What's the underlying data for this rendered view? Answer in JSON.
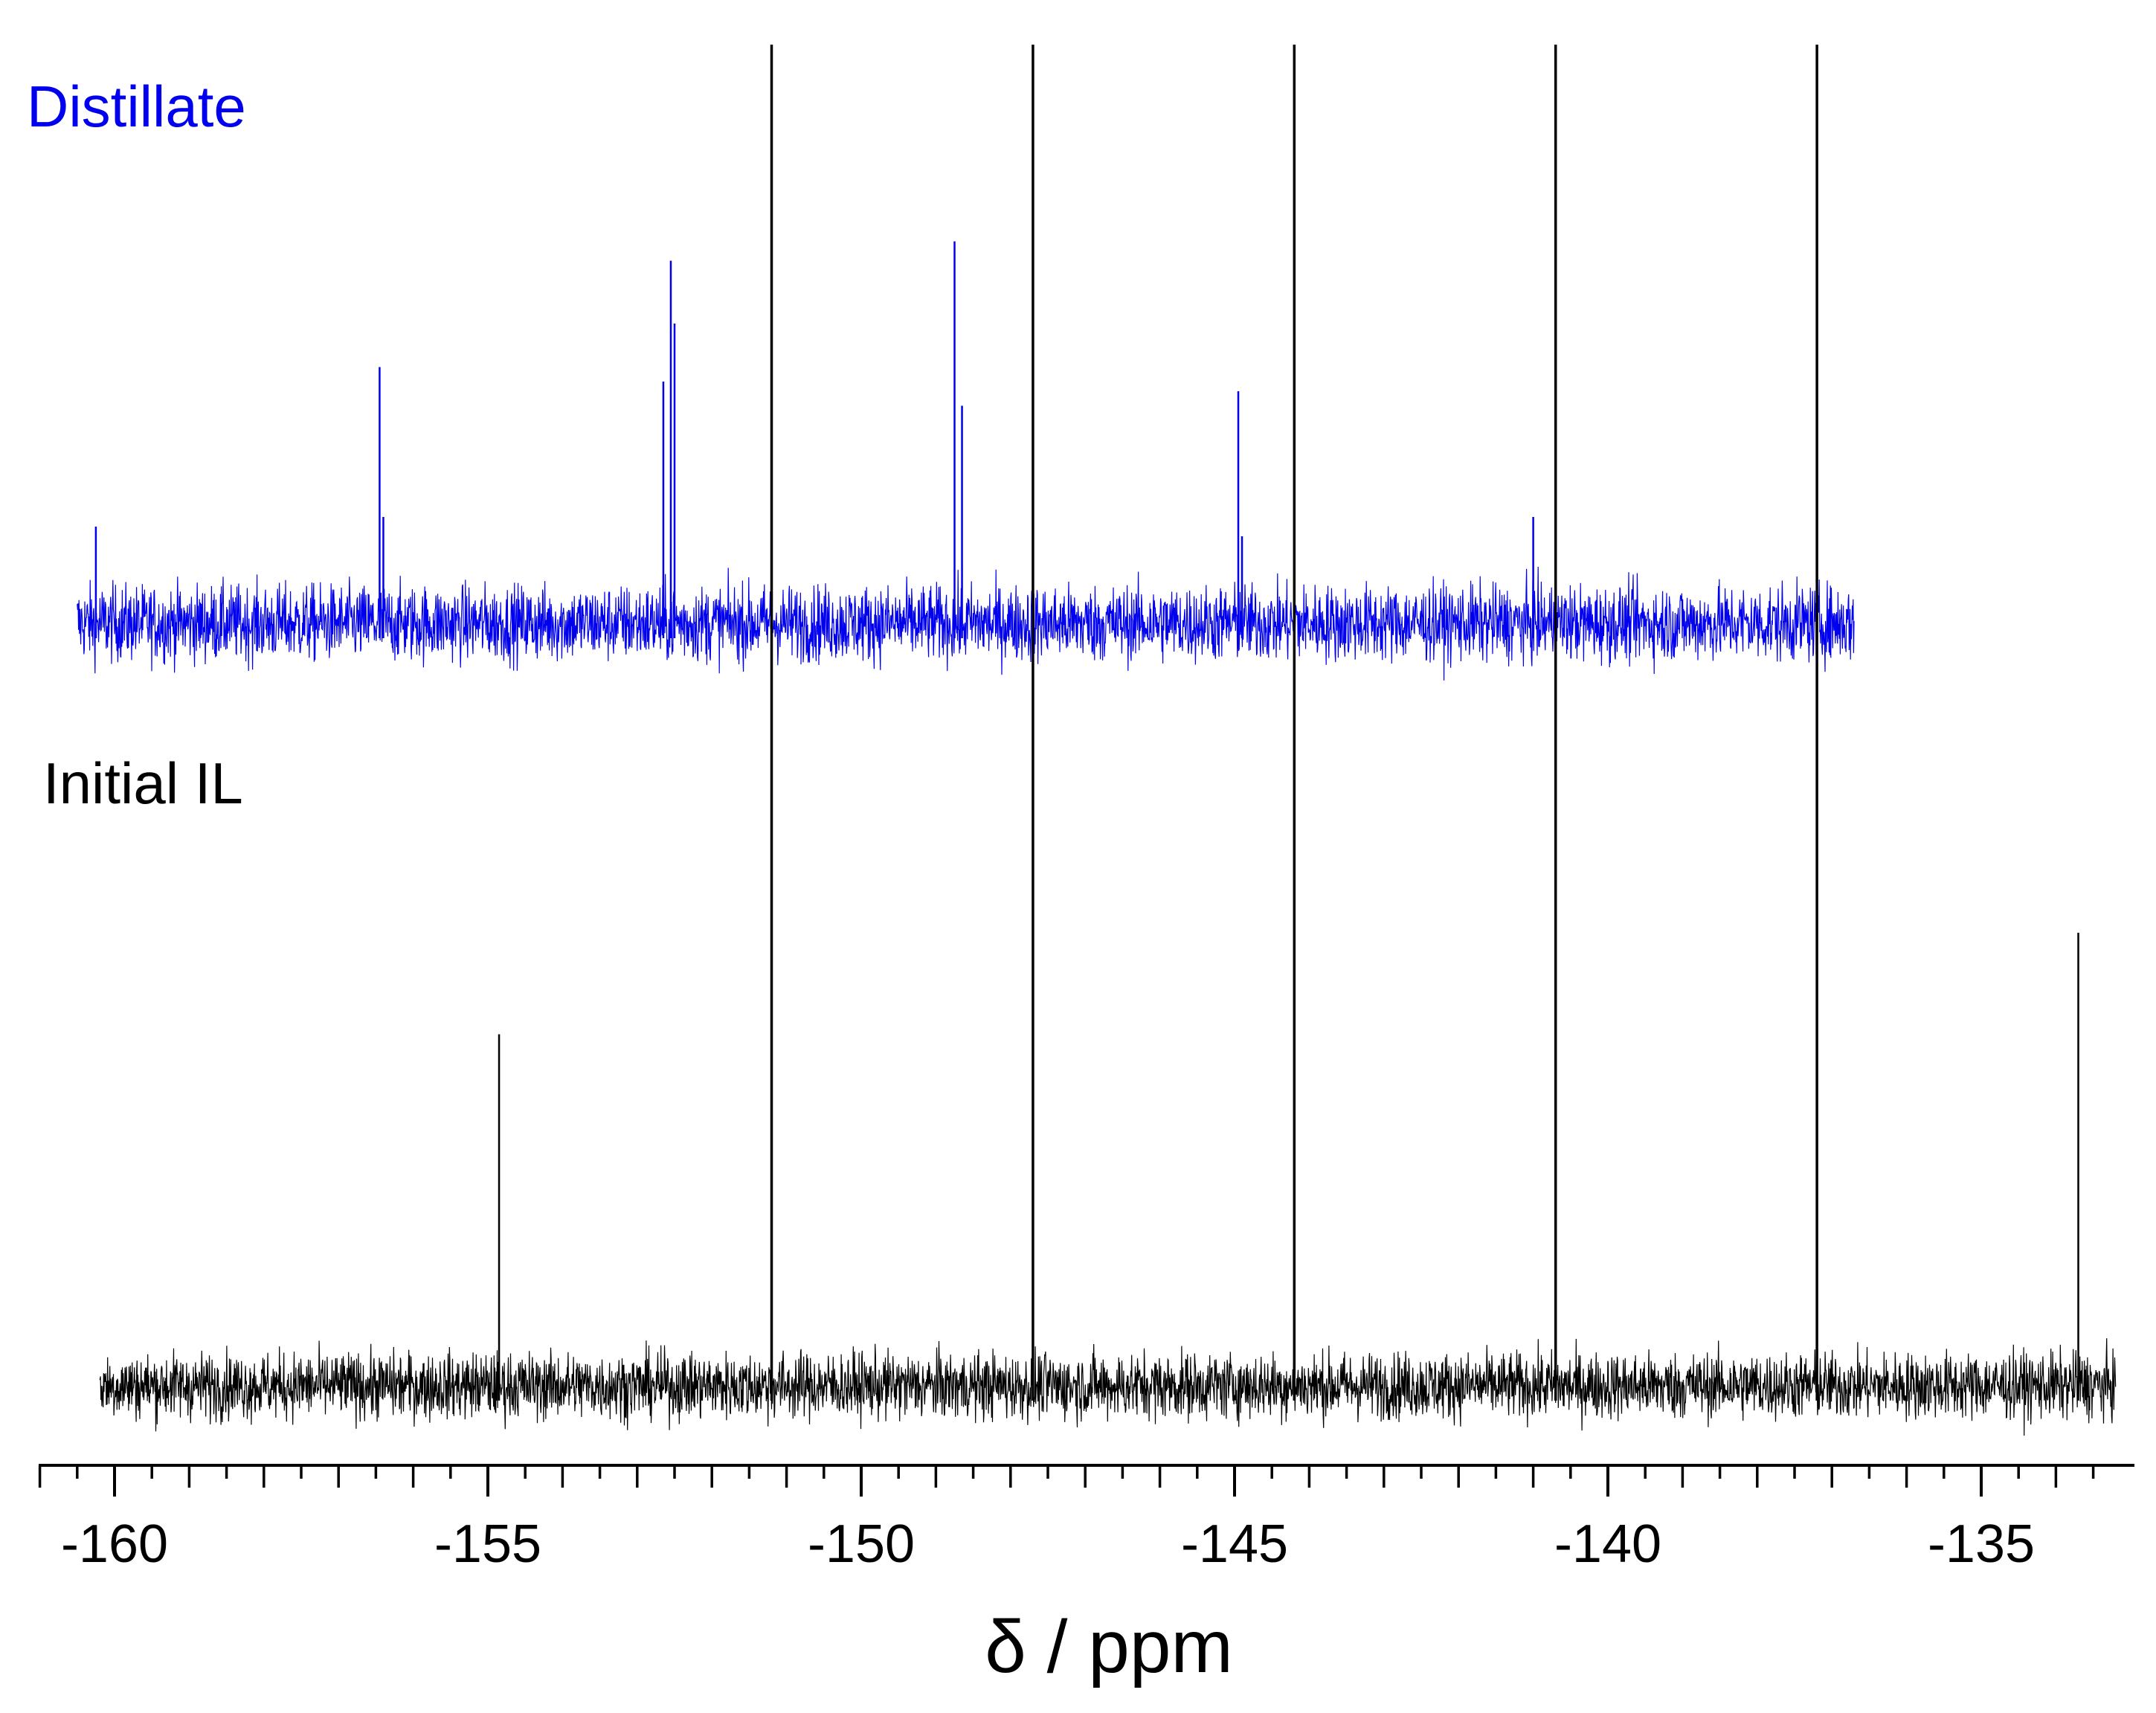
{
  "chart_data": {
    "type": "line",
    "xlabel": "δ / ppm",
    "xlim": [
      -161,
      -133.2
    ],
    "x_ticks": [
      -160,
      -155,
      -150,
      -145,
      -140,
      -135
    ],
    "x_tick_labels": [
      "-160",
      "-155",
      "-150",
      "-145",
      "-140",
      "-135"
    ],
    "minor_tick_step": 0.5,
    "series": [
      {
        "name": "Distillate",
        "color": "#0000ee",
        "x_range": [
          -160.5,
          -136.7
        ],
        "peaks": [
          {
            "x": -160.25,
            "height": 0.2
          },
          {
            "x": -156.45,
            "height": 0.53
          },
          {
            "x": -156.4,
            "height": 0.22
          },
          {
            "x": -152.65,
            "height": 0.5
          },
          {
            "x": -152.55,
            "height": 0.75
          },
          {
            "x": -152.5,
            "height": 0.62
          },
          {
            "x": -148.75,
            "height": 0.79
          },
          {
            "x": -148.65,
            "height": 0.45
          },
          {
            "x": -144.95,
            "height": 0.48
          },
          {
            "x": -144.9,
            "height": 0.18
          },
          {
            "x": -141.0,
            "height": 0.22
          }
        ]
      },
      {
        "name": "Initial IL",
        "color": "#000000",
        "x_range": [
          -160.2,
          -133.2
        ],
        "peaks": [
          {
            "x": -154.85,
            "height": 0.45
          },
          {
            "x": -151.2,
            "height": 1.8
          },
          {
            "x": -147.7,
            "height": 1.8
          },
          {
            "x": -144.2,
            "height": 1.8
          },
          {
            "x": -140.7,
            "height": 1.8
          },
          {
            "x": -137.2,
            "height": 1.8
          },
          {
            "x": -133.7,
            "height": 0.58
          }
        ]
      }
    ]
  }
}
